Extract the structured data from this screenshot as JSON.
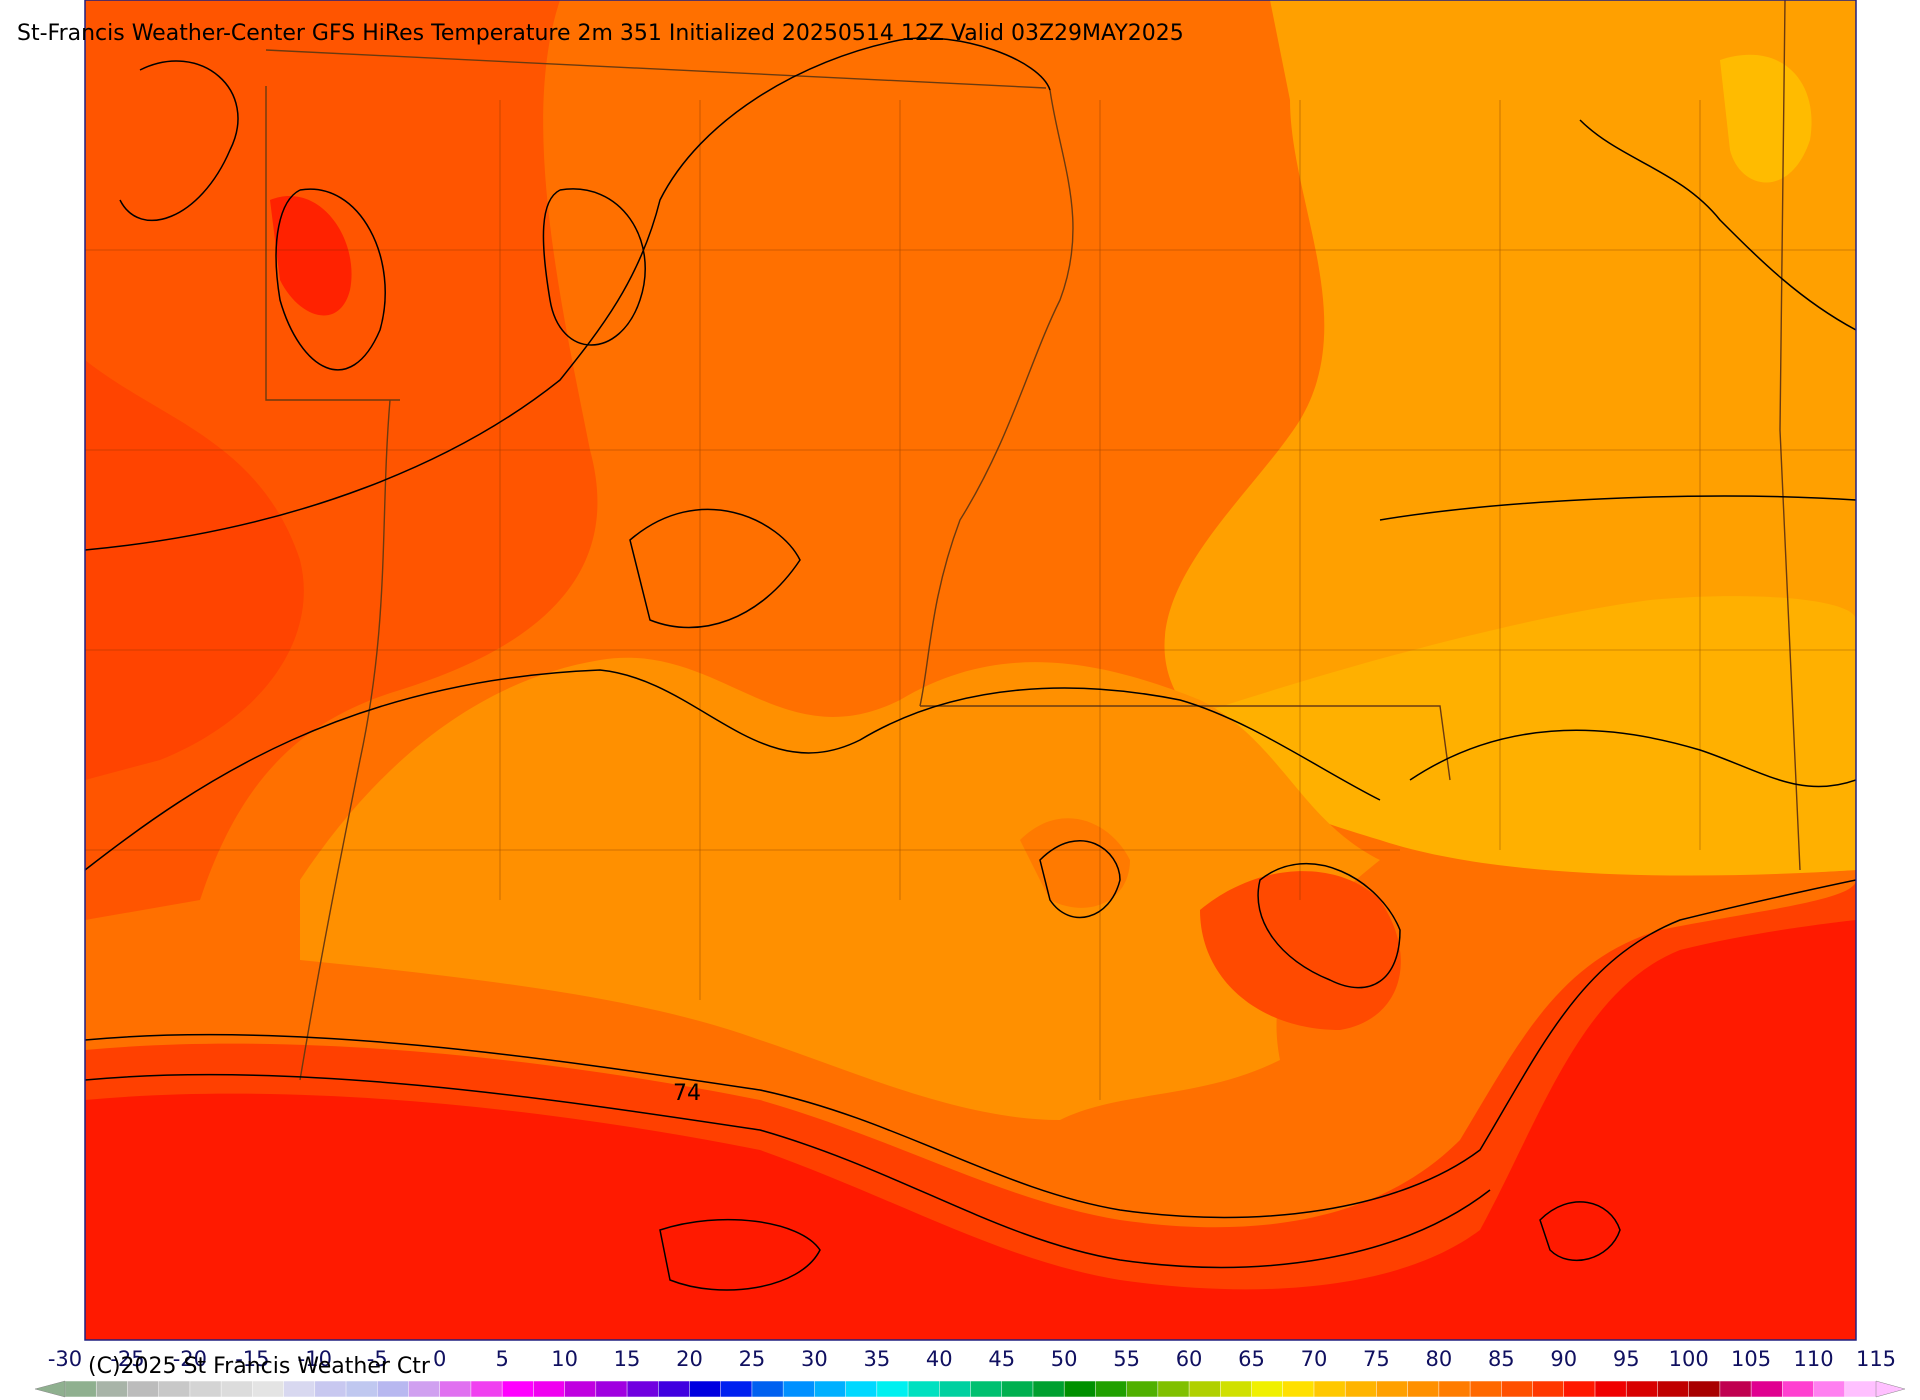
{
  "header": {
    "title": "St-Francis Weather-Center GFS HiRes Temperature 2m  351 Initialized 20250514 12Z Valid 03Z29MAY2025"
  },
  "contour_labels": [
    "74"
  ],
  "footer": {
    "copyright": "(C)2025 St Francis Weather Ctr"
  },
  "colorbar": {
    "labels": [
      -30,
      -25,
      -20,
      -15,
      -10,
      -5,
      0,
      5,
      10,
      15,
      20,
      25,
      30,
      35,
      40,
      45,
      50,
      55,
      60,
      65,
      70,
      75,
      80,
      85,
      90,
      95,
      100,
      105,
      110,
      115
    ],
    "colors": [
      "#8fb08f",
      "#a8b4a8",
      "#bcbcbc",
      "#c8c8c8",
      "#d4d4d4",
      "#dcdcdc",
      "#e4e4e4",
      "#d8d8f0",
      "#c8c8f0",
      "#c0c8f0",
      "#b8b8f0",
      "#d0a0f0",
      "#e070f0",
      "#f040f0",
      "#ff00ff",
      "#f000f0",
      "#c000e0",
      "#a000e0",
      "#7000e0",
      "#4000e0",
      "#0000e0",
      "#0020f0",
      "#0060f0",
      "#0090ff",
      "#00b0ff",
      "#00d8ff",
      "#00f0f0",
      "#00e0c0",
      "#00d0a0",
      "#00c070",
      "#00b050",
      "#00a030",
      "#009000",
      "#20a000",
      "#50b000",
      "#80c000",
      "#b0d000",
      "#d0e000",
      "#f0f000",
      "#ffe000",
      "#ffc800",
      "#ffb400",
      "#ffa000",
      "#ff9000",
      "#ff7c00",
      "#ff6800",
      "#ff5000",
      "#ff3800",
      "#ff1800",
      "#f00000",
      "#d80000",
      "#c00000",
      "#a80000",
      "#c00050",
      "#e00090",
      "#ff40d0",
      "#ff80f0",
      "#ffc0ff"
    ]
  }
}
